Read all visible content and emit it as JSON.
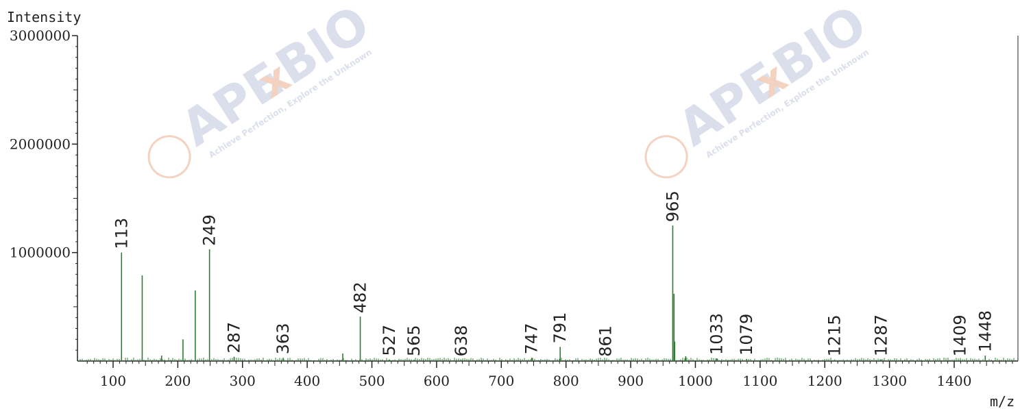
{
  "chart_data": {
    "type": "bar",
    "title": "",
    "xlabel": "m/z",
    "ylabel": "Intensity",
    "xlim": [
      50,
      1500
    ],
    "ylim": [
      0,
      3000000
    ],
    "x_ticks": [
      100,
      200,
      300,
      400,
      500,
      600,
      700,
      800,
      900,
      1000,
      1100,
      1200,
      1300,
      1400
    ],
    "x_tick_labels": [
      "100",
      "200",
      "300",
      "400",
      "500",
      "600",
      "700",
      "800",
      "900",
      "1000",
      "1100",
      "1200",
      "1300",
      "1400"
    ],
    "y_ticks": [
      1000000,
      2000000,
      3000000
    ],
    "y_tick_labels": [
      "1000000",
      "2000000",
      "3000000"
    ],
    "grid": false,
    "color": "#2e7d32",
    "series": [
      {
        "x": [
          113,
          145,
          175,
          208,
          227,
          249,
          287,
          363,
          455,
          482,
          527,
          565,
          638,
          747,
          791,
          861,
          965,
          967,
          968,
          985,
          1033,
          1079,
          1215,
          1287,
          1409,
          1448
        ],
        "values": [
          1000000,
          790000,
          50000,
          200000,
          650000,
          1030000,
          40000,
          30000,
          70000,
          410000,
          15000,
          12000,
          10000,
          30000,
          130000,
          8000,
          1250000,
          620000,
          180000,
          45000,
          25000,
          20000,
          10000,
          12000,
          10000,
          50000
        ]
      }
    ],
    "peak_labels": [
      "113",
      "249",
      "287",
      "363",
      "482",
      "527",
      "565",
      "638",
      "747",
      "791",
      "861",
      "965",
      "1033",
      "1079",
      "1215",
      "1287",
      "1409",
      "1448"
    ],
    "peak_label_x": [
      113,
      249,
      287,
      363,
      482,
      527,
      565,
      638,
      747,
      791,
      861,
      965,
      1033,
      1079,
      1215,
      1287,
      1409,
      1448
    ],
    "peak_label_y": [
      1000000,
      1030000,
      40000,
      30000,
      410000,
      15000,
      12000,
      10000,
      30000,
      130000,
      8000,
      1250000,
      25000,
      20000,
      10000,
      12000,
      10000,
      50000
    ]
  },
  "watermark": {
    "brand_left": "APE",
    "brand_x": "x",
    "brand_right": "BIO",
    "tagline": "Achieve Perfection, Explore the Unknown"
  }
}
